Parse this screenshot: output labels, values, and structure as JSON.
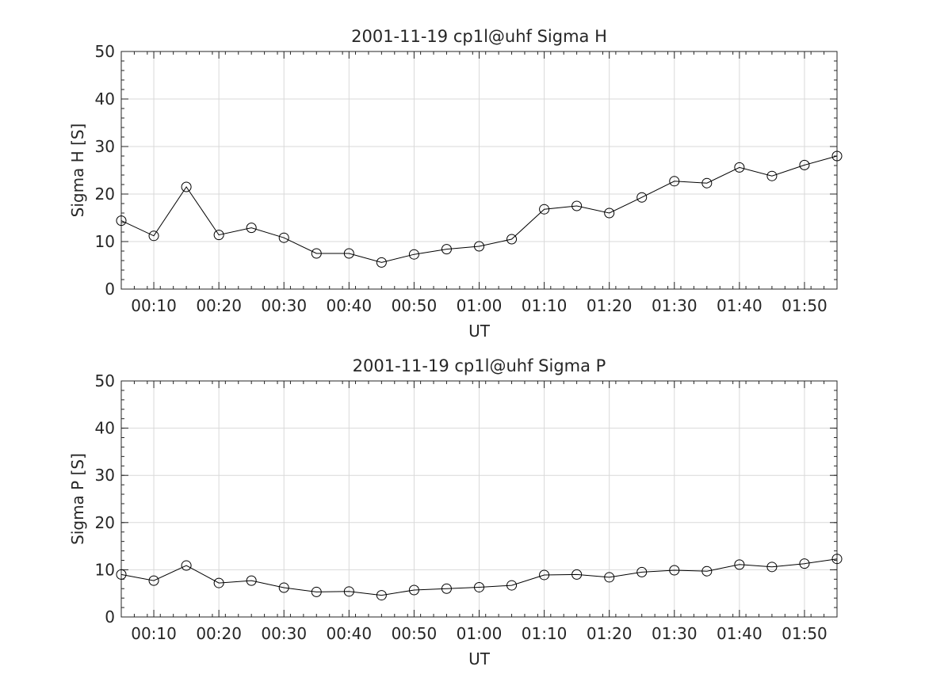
{
  "chart_data": [
    {
      "type": "line",
      "title": "2001-11-19  cp1l@uhf Sigma H",
      "xlabel": "UT",
      "ylabel": "Sigma H [S]",
      "xlim": [
        "00:05",
        "01:55"
      ],
      "ylim": [
        0,
        50
      ],
      "xticks": [
        "00:10",
        "00:20",
        "00:30",
        "00:40",
        "00:50",
        "01:00",
        "01:10",
        "01:20",
        "01:30",
        "01:40",
        "01:50"
      ],
      "yticks": [
        0,
        10,
        20,
        30,
        40,
        50
      ],
      "grid": true,
      "marker": "circle",
      "x": [
        "00:05",
        "00:10",
        "00:15",
        "00:20",
        "00:25",
        "00:30",
        "00:35",
        "00:40",
        "00:45",
        "00:50",
        "00:55",
        "01:00",
        "01:05",
        "01:10",
        "01:15",
        "01:20",
        "01:25",
        "01:30",
        "01:35",
        "01:40",
        "01:45",
        "01:50",
        "01:55"
      ],
      "values": [
        14.4,
        11.2,
        21.5,
        11.4,
        12.9,
        10.8,
        7.5,
        7.5,
        5.6,
        7.3,
        8.4,
        9.0,
        10.5,
        16.8,
        17.5,
        16.0,
        19.3,
        22.7,
        22.3,
        25.6,
        23.8,
        26.1,
        28.0
      ]
    },
    {
      "type": "line",
      "title": "2001-11-19  cp1l@uhf Sigma P",
      "xlabel": "UT",
      "ylabel": "Sigma P [S]",
      "xlim": [
        "00:05",
        "01:55"
      ],
      "ylim": [
        0,
        50
      ],
      "xticks": [
        "00:10",
        "00:20",
        "00:30",
        "00:40",
        "00:50",
        "01:00",
        "01:10",
        "01:20",
        "01:30",
        "01:40",
        "01:50"
      ],
      "yticks": [
        0,
        10,
        20,
        30,
        40,
        50
      ],
      "grid": true,
      "marker": "circle",
      "x": [
        "00:05",
        "00:10",
        "00:15",
        "00:20",
        "00:25",
        "00:30",
        "00:35",
        "00:40",
        "00:45",
        "00:50",
        "00:55",
        "01:00",
        "01:05",
        "01:10",
        "01:15",
        "01:20",
        "01:25",
        "01:30",
        "01:35",
        "01:40",
        "01:45",
        "01:50",
        "01:55"
      ],
      "values": [
        9.0,
        7.7,
        10.9,
        7.2,
        7.7,
        6.2,
        5.3,
        5.4,
        4.6,
        5.7,
        6.0,
        6.3,
        6.7,
        8.9,
        9.0,
        8.4,
        9.5,
        9.9,
        9.7,
        11.1,
        10.6,
        11.3,
        12.3
      ]
    }
  ]
}
